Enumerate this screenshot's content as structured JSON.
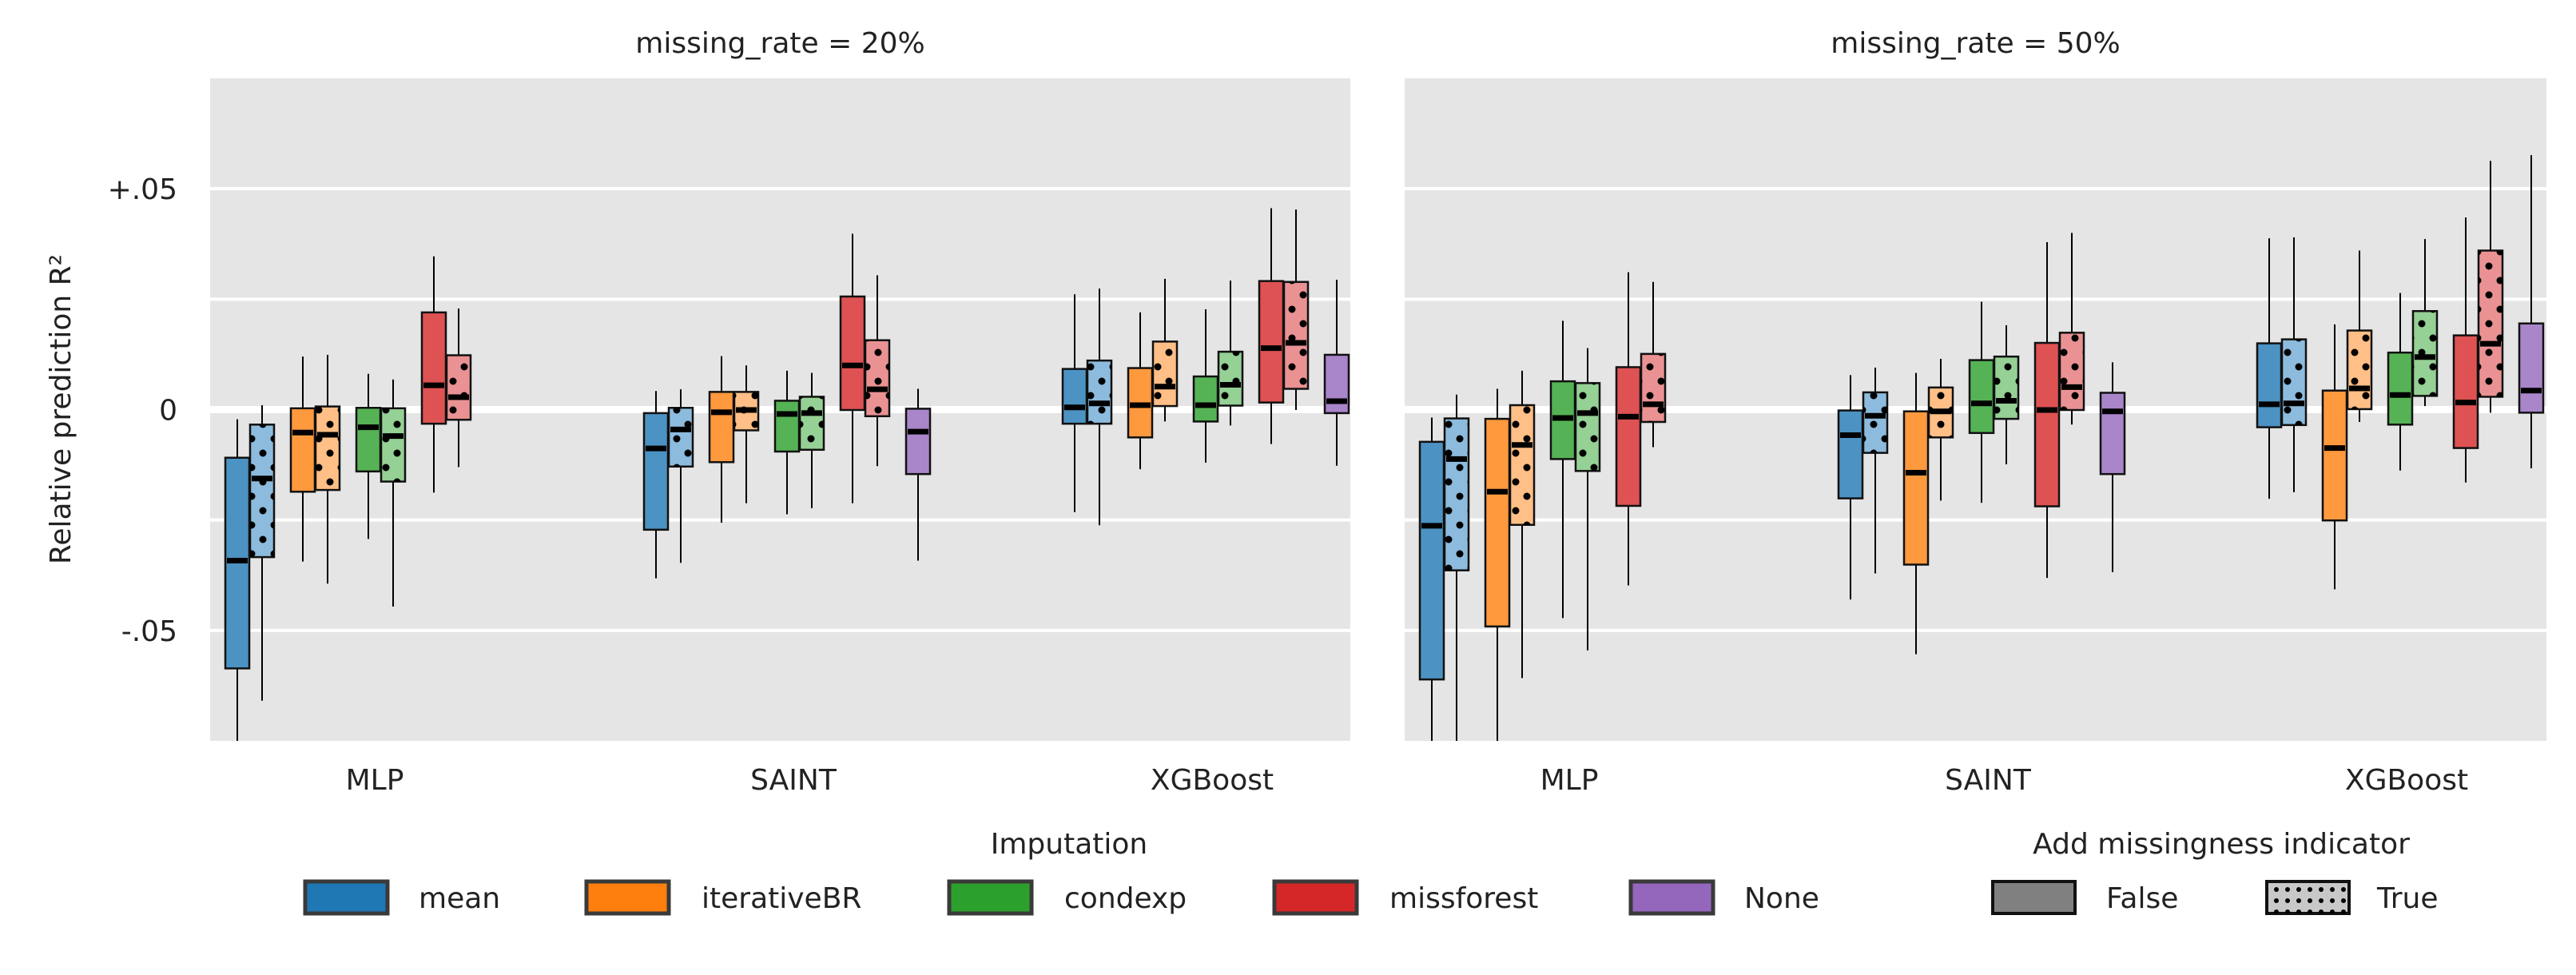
{
  "chart_data": {
    "type": "box",
    "ylabel": "Relative prediction R²",
    "ylim": [
      -0.075,
      0.075
    ],
    "yticks": [
      {
        "value": 0.05,
        "label": "+.05"
      },
      {
        "value": 0,
        "label": "0"
      },
      {
        "value": -0.05,
        "label": "-.05"
      }
    ],
    "minor_gridlines": [
      0.025,
      -0.025
    ],
    "grid": true,
    "categories": [
      "MLP",
      "SAINT",
      "XGBoost"
    ],
    "legend_imputation": {
      "title": "Imputation",
      "entries": [
        "mean",
        "iterativeBR",
        "condexp",
        "missforest",
        "None"
      ]
    },
    "legend_indicator": {
      "title": "Add missingness indicator",
      "entries": [
        "False",
        "True"
      ]
    },
    "colors": {
      "mean": "#1f77b4",
      "iterativeBR": "#ff7f0e",
      "condexp": "#2ca02c",
      "missforest": "#d62728",
      "None": "#9467bd"
    },
    "panels": [
      {
        "title": "missing_rate = 20%",
        "groups": {
          "MLP": [
            {
              "imp": "mean",
              "ind": "False",
              "whislo": -0.078,
              "q1": -0.0586,
              "med": -0.0342,
              "q3": -0.0109,
              "whishi": -0.0022
            },
            {
              "imp": "mean",
              "ind": "True",
              "whislo": -0.0659,
              "q1": -0.0334,
              "med": -0.0156,
              "q3": -0.0034,
              "whishi": 0.001
            },
            {
              "imp": "iterativeBR",
              "ind": "False",
              "whislo": -0.0344,
              "q1": -0.0186,
              "med": -0.0052,
              "q3": 0.0003,
              "whishi": 0.012
            },
            {
              "imp": "iterativeBR",
              "ind": "True",
              "whislo": -0.0394,
              "q1": -0.0182,
              "med": -0.0057,
              "q3": 0.0007,
              "whishi": 0.0124
            },
            {
              "imp": "condexp",
              "ind": "False",
              "whislo": -0.0293,
              "q1": -0.014,
              "med": -0.004,
              "q3": 0.0004,
              "whishi": 0.0081
            },
            {
              "imp": "condexp",
              "ind": "True",
              "whislo": -0.0446,
              "q1": -0.0163,
              "med": -0.006,
              "q3": 0.0003,
              "whishi": 0.0068
            },
            {
              "imp": "missforest",
              "ind": "False",
              "whislo": -0.0188,
              "q1": -0.0032,
              "med": 0.0055,
              "q3": 0.022,
              "whishi": 0.0347
            },
            {
              "imp": "missforest",
              "ind": "True",
              "whislo": -0.013,
              "q1": -0.0023,
              "med": 0.0028,
              "q3": 0.0123,
              "whishi": 0.0229
            }
          ],
          "SAINT": [
            {
              "imp": "mean",
              "ind": "False",
              "whislo": -0.0382,
              "q1": -0.0272,
              "med": -0.0088,
              "q3": -0.0008,
              "whishi": 0.0042
            },
            {
              "imp": "mean",
              "ind": "True",
              "whislo": -0.0347,
              "q1": -0.0129,
              "med": -0.0045,
              "q3": 0.0004,
              "whishi": 0.0046
            },
            {
              "imp": "iterativeBR",
              "ind": "False",
              "whislo": -0.0256,
              "q1": -0.0119,
              "med": -0.0006,
              "q3": 0.004,
              "whishi": 0.0121
            },
            {
              "imp": "iterativeBR",
              "ind": "True",
              "whislo": -0.0212,
              "q1": -0.0047,
              "med": -0.0001,
              "q3": 0.004,
              "whishi": 0.01
            },
            {
              "imp": "condexp",
              "ind": "False",
              "whislo": -0.0237,
              "q1": -0.0095,
              "med": -0.001,
              "q3": 0.002,
              "whishi": 0.0088
            },
            {
              "imp": "condexp",
              "ind": "True",
              "whislo": -0.0223,
              "q1": -0.0091,
              "med": -0.0008,
              "q3": 0.0029,
              "whishi": 0.0083
            },
            {
              "imp": "missforest",
              "ind": "False",
              "whislo": -0.0212,
              "q1": -0.0001,
              "med": 0.01,
              "q3": 0.0256,
              "whishi": 0.0398
            },
            {
              "imp": "missforest",
              "ind": "True",
              "whislo": -0.0128,
              "q1": -0.0015,
              "med": 0.0046,
              "q3": 0.0157,
              "whishi": 0.0304
            },
            {
              "imp": "None",
              "ind": "False",
              "whislo": -0.0342,
              "q1": -0.0146,
              "med": -0.005,
              "q3": 0.0002,
              "whishi": 0.0047
            }
          ],
          "XGBoost": [
            {
              "imp": "mean",
              "ind": "False",
              "whislo": -0.0232,
              "q1": -0.0032,
              "med": 0.0005,
              "q3": 0.0092,
              "whishi": 0.0261
            },
            {
              "imp": "mean",
              "ind": "True",
              "whislo": -0.0262,
              "q1": -0.0032,
              "med": 0.0014,
              "q3": 0.0111,
              "whishi": 0.0274
            },
            {
              "imp": "iterativeBR",
              "ind": "False",
              "whislo": -0.0135,
              "q1": -0.0063,
              "med": 0.001,
              "q3": 0.0094,
              "whishi": 0.022
            },
            {
              "imp": "iterativeBR",
              "ind": "True",
              "whislo": -0.0027,
              "q1": 0.0008,
              "med": 0.0052,
              "q3": 0.0154,
              "whishi": 0.0296
            },
            {
              "imp": "condexp",
              "ind": "False",
              "whislo": -0.012,
              "q1": -0.0027,
              "med": 0.001,
              "q3": 0.0075,
              "whishi": 0.0227
            },
            {
              "imp": "condexp",
              "ind": "True",
              "whislo": -0.0036,
              "q1": 0.0009,
              "med": 0.0056,
              "q3": 0.0131,
              "whishi": 0.0292
            },
            {
              "imp": "missforest",
              "ind": "False",
              "whislo": -0.0078,
              "q1": 0.0016,
              "med": 0.0139,
              "q3": 0.0291,
              "whishi": 0.0456
            },
            {
              "imp": "missforest",
              "ind": "True",
              "whislo": -0.0001,
              "q1": 0.0047,
              "med": 0.0151,
              "q3": 0.0289,
              "whishi": 0.0453
            },
            {
              "imp": "None",
              "ind": "False",
              "whislo": -0.0127,
              "q1": -0.0008,
              "med": 0.0019,
              "q3": 0.0124,
              "whishi": 0.0294
            }
          ]
        }
      },
      {
        "title": "missing_rate = 50%",
        "groups": {
          "MLP": [
            {
              "imp": "mean",
              "ind": "False",
              "whislo": -0.078,
              "q1": -0.0611,
              "med": -0.0263,
              "q3": -0.0073,
              "whishi": -0.0018
            },
            {
              "imp": "mean",
              "ind": "True",
              "whislo": -0.078,
              "q1": -0.0364,
              "med": -0.0112,
              "q3": -0.002,
              "whishi": 0.0034
            },
            {
              "imp": "iterativeBR",
              "ind": "False",
              "whislo": -0.078,
              "q1": -0.0491,
              "med": -0.0186,
              "q3": -0.0021,
              "whishi": 0.0047
            },
            {
              "imp": "iterativeBR",
              "ind": "True",
              "whislo": -0.0608,
              "q1": -0.0261,
              "med": -0.008,
              "q3": 0.001,
              "whishi": 0.0088
            },
            {
              "imp": "condexp",
              "ind": "False",
              "whislo": -0.0472,
              "q1": -0.0112,
              "med": -0.0019,
              "q3": 0.0064,
              "whishi": 0.0201
            },
            {
              "imp": "condexp",
              "ind": "True",
              "whislo": -0.0545,
              "q1": -0.0139,
              "med": -0.0008,
              "q3": 0.006,
              "whishi": 0.0139
            },
            {
              "imp": "missforest",
              "ind": "False",
              "whislo": -0.0398,
              "q1": -0.0218,
              "med": -0.0016,
              "q3": 0.0096,
              "whishi": 0.0311
            },
            {
              "imp": "missforest",
              "ind": "True",
              "whislo": -0.0085,
              "q1": -0.0028,
              "med": 0.0012,
              "q3": 0.0126,
              "whishi": 0.0289
            }
          ],
          "SAINT": [
            {
              "imp": "mean",
              "ind": "False",
              "whislo": -0.043,
              "q1": -0.0201,
              "med": -0.0058,
              "q3": -0.0002,
              "whishi": 0.0078
            },
            {
              "imp": "mean",
              "ind": "True",
              "whislo": -0.0371,
              "q1": -0.0098,
              "med": -0.0014,
              "q3": 0.0039,
              "whishi": 0.0095
            },
            {
              "imp": "iterativeBR",
              "ind": "False",
              "whislo": -0.0554,
              "q1": -0.0351,
              "med": -0.0143,
              "q3": -0.0004,
              "whishi": 0.0083
            },
            {
              "imp": "iterativeBR",
              "ind": "True",
              "whislo": -0.0206,
              "q1": -0.0063,
              "med": -0.0004,
              "q3": 0.005,
              "whishi": 0.0115
            },
            {
              "imp": "condexp",
              "ind": "False",
              "whislo": -0.0211,
              "q1": -0.0053,
              "med": 0.0014,
              "q3": 0.0112,
              "whishi": 0.0244
            },
            {
              "imp": "condexp",
              "ind": "True",
              "whislo": -0.0124,
              "q1": -0.0021,
              "med": 0.002,
              "q3": 0.012,
              "whishi": 0.0191
            },
            {
              "imp": "missforest",
              "ind": "False",
              "whislo": -0.0381,
              "q1": -0.0219,
              "med": -0.0001,
              "q3": 0.0151,
              "whishi": 0.0379
            },
            {
              "imp": "missforest",
              "ind": "True",
              "whislo": -0.0034,
              "q1": -0.0001,
              "med": 0.0051,
              "q3": 0.0174,
              "whishi": 0.04
            },
            {
              "imp": "None",
              "ind": "False",
              "whislo": -0.0368,
              "q1": -0.0146,
              "med": -0.0004,
              "q3": 0.0038,
              "whishi": 0.0107
            }
          ],
          "XGBoost": [
            {
              "imp": "mean",
              "ind": "False",
              "whislo": -0.0202,
              "q1": -0.004,
              "med": 0.0012,
              "q3": 0.015,
              "whishi": 0.0388
            },
            {
              "imp": "mean",
              "ind": "True",
              "whislo": -0.0187,
              "q1": -0.0035,
              "med": 0.0014,
              "q3": 0.0159,
              "whishi": 0.039
            },
            {
              "imp": "iterativeBR",
              "ind": "False",
              "whislo": -0.0407,
              "q1": -0.0251,
              "med": -0.0087,
              "q3": 0.0043,
              "whishi": 0.0193
            },
            {
              "imp": "iterativeBR",
              "ind": "True",
              "whislo": -0.0028,
              "q1": 0.0001,
              "med": 0.0048,
              "q3": 0.0179,
              "whishi": 0.036
            },
            {
              "imp": "condexp",
              "ind": "False",
              "whislo": -0.0138,
              "q1": -0.0034,
              "med": 0.0033,
              "q3": 0.0129,
              "whishi": 0.0264
            },
            {
              "imp": "condexp",
              "ind": "True",
              "whislo": 0.0008,
              "q1": 0.0031,
              "med": 0.0119,
              "q3": 0.0223,
              "whishi": 0.0386
            },
            {
              "imp": "missforest",
              "ind": "False",
              "whislo": -0.0165,
              "q1": -0.0087,
              "med": 0.0016,
              "q3": 0.0168,
              "whishi": 0.0435
            },
            {
              "imp": "missforest",
              "ind": "True",
              "whislo": -0.0007,
              "q1": 0.0029,
              "med": 0.0149,
              "q3": 0.036,
              "whishi": 0.0563
            },
            {
              "imp": "None",
              "ind": "False",
              "whislo": -0.0133,
              "q1": -0.0007,
              "med": 0.0043,
              "q3": 0.0195,
              "whishi": 0.0576
            }
          ]
        }
      }
    ]
  }
}
